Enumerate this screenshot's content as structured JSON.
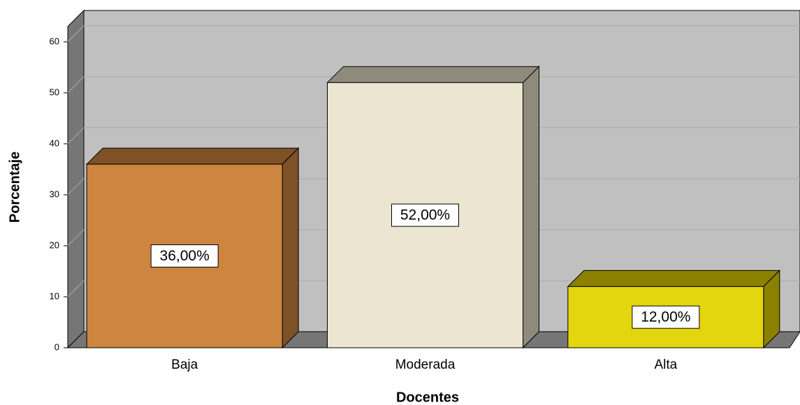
{
  "chart_data": {
    "type": "bar3d",
    "x_label": "Docentes",
    "y_label": "Porcentaje",
    "categories": [
      "Baja",
      "Moderada",
      "Alta"
    ],
    "values": [
      36,
      52,
      12
    ],
    "value_labels": [
      "36,00%",
      "52,00%",
      "12,00%"
    ],
    "colors": [
      "#cd853f",
      "#ebe5d1",
      "#e3d60f"
    ],
    "side_colors": [
      "#7f5127",
      "#8e8a7c",
      "#8c8000"
    ],
    "ylim": [
      0,
      63
    ],
    "yticks": [
      0,
      10,
      20,
      30,
      40,
      50,
      60
    ],
    "grid": true
  }
}
